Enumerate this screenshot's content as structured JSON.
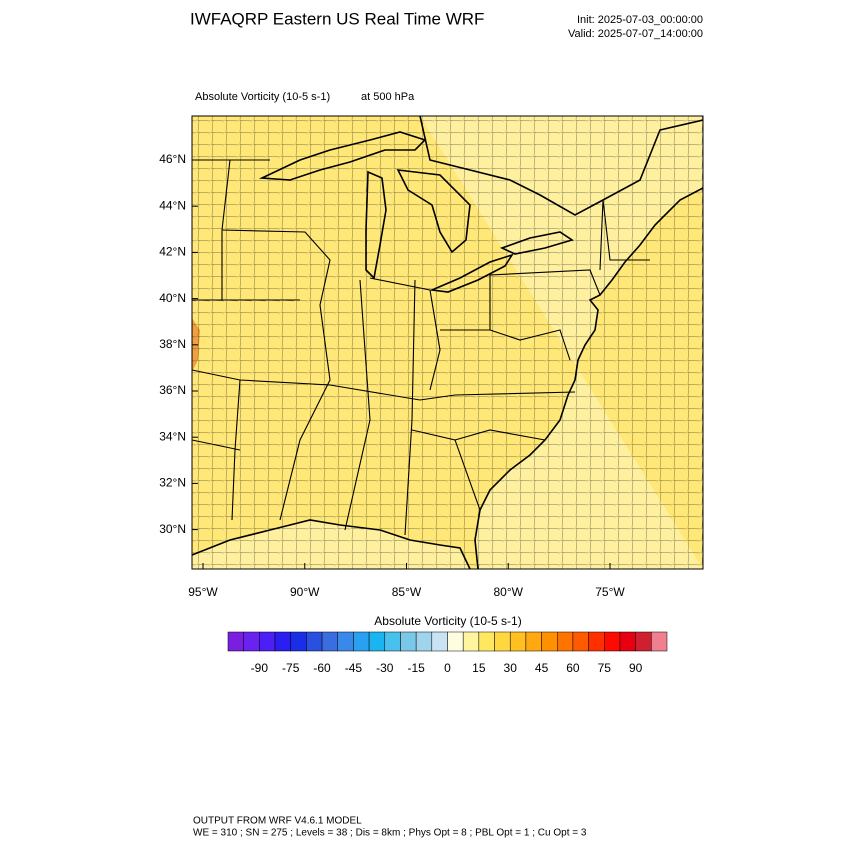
{
  "header": {
    "title": "IWFAQRP Eastern US Real Time WRF",
    "init": "Init: 2025-07-03_00:00:00",
    "valid": "Valid: 2025-07-07_14:00:00"
  },
  "map": {
    "field": "Absolute Vorticity   (10-5 s-1)",
    "level": "at   500 hPa",
    "lat_ticks": [
      {
        "value": 46,
        "label": "46°N"
      },
      {
        "value": 44,
        "label": "44°N"
      },
      {
        "value": 42,
        "label": "42°N"
      },
      {
        "value": 40,
        "label": "40°N"
      },
      {
        "value": 38,
        "label": "38°N"
      },
      {
        "value": 36,
        "label": "36°N"
      },
      {
        "value": 34,
        "label": "34°N"
      },
      {
        "value": 32,
        "label": "32°N"
      },
      {
        "value": 30,
        "label": "30°N"
      }
    ],
    "lon_ticks": [
      {
        "value": -95,
        "label": "95°W"
      },
      {
        "value": -90,
        "label": "90°W"
      },
      {
        "value": -85,
        "label": "85°W"
      },
      {
        "value": -80,
        "label": "80°W"
      },
      {
        "value": -75,
        "label": "75°W"
      }
    ]
  },
  "colorbar": {
    "title": "Absolute Vorticity  (10-5 s-1)",
    "xlim": [
      -105,
      105
    ],
    "ticks": [
      -90,
      -75,
      -60,
      -45,
      -30,
      -15,
      0,
      15,
      30,
      45,
      60,
      75,
      90
    ],
    "colors": [
      "#7a1fe0",
      "#6a22f0",
      "#4b1ff5",
      "#2a1ef0",
      "#1a2ee8",
      "#2a50e0",
      "#3a6ee0",
      "#3a88e8",
      "#2aa0f0",
      "#1ab4f0",
      "#4ac0ec",
      "#7ac8e8",
      "#a0d4ec",
      "#c8e4f4",
      "#fffde0",
      "#fff4a0",
      "#ffe860",
      "#ffd840",
      "#ffc020",
      "#ffa810",
      "#ff9000",
      "#ff7400",
      "#ff5a00",
      "#ff3000",
      "#ff0a00",
      "#e80010",
      "#d02030",
      "#f08090"
    ]
  },
  "footer": {
    "line1": "OUTPUT FROM WRF V4.6.1 MODEL",
    "line2": "WE = 310 ; SN = 275 ; Levels = 38 ; Dis = 8km ; Phys Opt = 8 ; PBL Opt = 1 ; Cu Opt = 3"
  }
}
